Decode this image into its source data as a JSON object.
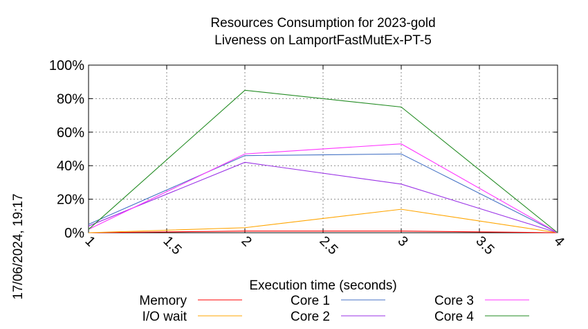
{
  "chart_data": {
    "type": "line",
    "title_line1": "Resources Consumption for 2023-gold",
    "title_line2": "Liveness on LamportFastMutEx-PT-5",
    "xlabel": "Execution time (seconds)",
    "ylabel": "",
    "timestamp": "17/06/2024, 19:17",
    "xlim": [
      1,
      4
    ],
    "ylim": [
      0,
      100
    ],
    "xticks": [
      {
        "value": 1,
        "label": "1"
      },
      {
        "value": 1.5,
        "label": "1.5"
      },
      {
        "value": 2,
        "label": "2"
      },
      {
        "value": 2.5,
        "label": "2.5"
      },
      {
        "value": 3,
        "label": "3"
      },
      {
        "value": 3.5,
        "label": "3.5"
      },
      {
        "value": 4,
        "label": "4"
      }
    ],
    "yticks": [
      {
        "value": 0,
        "label": "0%"
      },
      {
        "value": 20,
        "label": "20%"
      },
      {
        "value": 40,
        "label": "40%"
      },
      {
        "value": 60,
        "label": "60%"
      },
      {
        "value": 80,
        "label": "80%"
      },
      {
        "value": 100,
        "label": "100%"
      }
    ],
    "grid": true,
    "legend_position": "bottom",
    "x": [
      1,
      2,
      3,
      4
    ],
    "series": [
      {
        "name": "Memory",
        "color": "#ff0000",
        "values": [
          0,
          1,
          1,
          0
        ]
      },
      {
        "name": "I/O wait",
        "color": "#ffa500",
        "values": [
          0,
          3,
          14,
          0
        ]
      },
      {
        "name": "Core 1",
        "color": "#4472c4",
        "values": [
          5,
          46,
          47,
          0
        ]
      },
      {
        "name": "Core 2",
        "color": "#9a32e6",
        "values": [
          4,
          42,
          29,
          0
        ]
      },
      {
        "name": "Core 3",
        "color": "#ff33ff",
        "values": [
          2,
          47,
          53,
          0
        ]
      },
      {
        "name": "Core 4",
        "color": "#228b22",
        "values": [
          2,
          85,
          75,
          0
        ]
      }
    ]
  }
}
